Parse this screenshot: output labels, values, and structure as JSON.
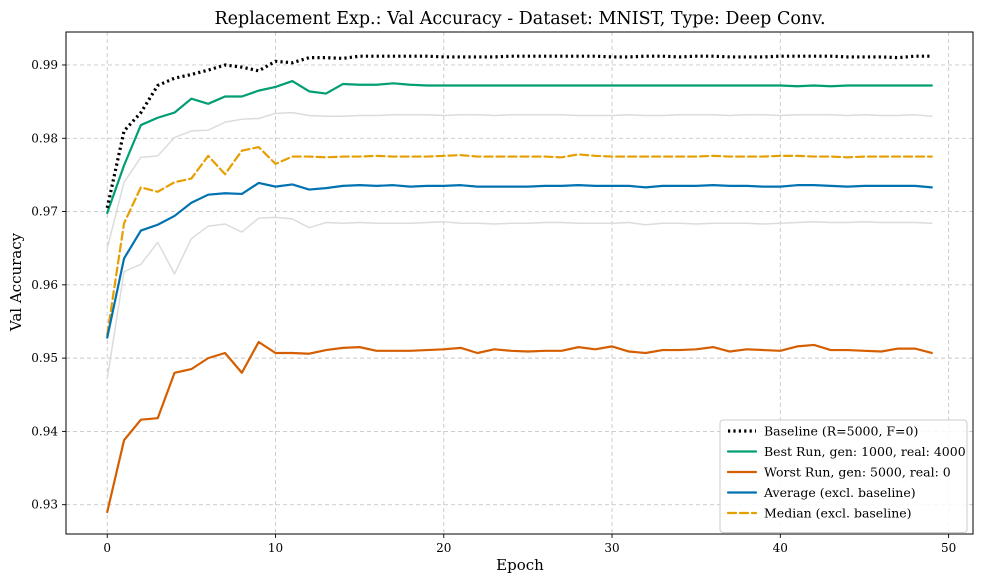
{
  "chart_data": {
    "type": "line",
    "title": "Replacement Exp.: Val Accuracy - Dataset: MNIST, Type: Deep Conv.",
    "xlabel": "Epoch",
    "ylabel": "Val Accuracy",
    "xlim": [
      -2.45,
      51.45
    ],
    "ylim": [
      0.926,
      0.9945
    ],
    "xticks": [
      0,
      10,
      20,
      30,
      40,
      50
    ],
    "yticks": [
      0.93,
      0.94,
      0.95,
      0.96,
      0.97,
      0.98,
      0.99
    ],
    "grid": true,
    "legend_position": "lower-right",
    "x": [
      0,
      1,
      2,
      3,
      4,
      5,
      6,
      7,
      8,
      9,
      10,
      11,
      12,
      13,
      14,
      15,
      16,
      17,
      18,
      19,
      20,
      21,
      22,
      23,
      24,
      25,
      26,
      27,
      28,
      29,
      30,
      31,
      32,
      33,
      34,
      35,
      36,
      37,
      38,
      39,
      40,
      41,
      42,
      43,
      44,
      45,
      46,
      47,
      48,
      49
    ],
    "series": [
      {
        "name": "Baseline (R=5000, F=0)",
        "color": "#000000",
        "style": "dotted",
        "width": 3.2,
        "legend": true,
        "values": [
          0.9705,
          0.981,
          0.9835,
          0.9872,
          0.9882,
          0.9887,
          0.9893,
          0.99,
          0.9897,
          0.9892,
          0.9905,
          0.9903,
          0.991,
          0.991,
          0.9909,
          0.9912,
          0.9912,
          0.9912,
          0.9912,
          0.9912,
          0.9911,
          0.9911,
          0.9911,
          0.9911,
          0.9912,
          0.9912,
          0.9912,
          0.9912,
          0.9912,
          0.9912,
          0.9911,
          0.9911,
          0.9912,
          0.9912,
          0.9911,
          0.9912,
          0.9912,
          0.9911,
          0.9911,
          0.9911,
          0.9912,
          0.9912,
          0.9912,
          0.9912,
          0.9911,
          0.9911,
          0.9911,
          0.991,
          0.9912,
          0.9912
        ]
      },
      {
        "name": "Best Run, gen: 1000, real: 4000",
        "color": "#009e73",
        "style": "solid",
        "width": 2.2,
        "legend": true,
        "values": [
          0.9698,
          0.9763,
          0.9818,
          0.9828,
          0.9835,
          0.9854,
          0.9847,
          0.9857,
          0.9857,
          0.9865,
          0.987,
          0.9878,
          0.9864,
          0.9861,
          0.9874,
          0.9873,
          0.9873,
          0.9875,
          0.9873,
          0.9872,
          0.9872,
          0.9872,
          0.9872,
          0.9872,
          0.9872,
          0.9872,
          0.9872,
          0.9872,
          0.9872,
          0.9872,
          0.9872,
          0.9872,
          0.9872,
          0.9872,
          0.9872,
          0.9872,
          0.9872,
          0.9872,
          0.9872,
          0.9872,
          0.9872,
          0.9871,
          0.9872,
          0.9871,
          0.9872,
          0.9872,
          0.9872,
          0.9872,
          0.9872,
          0.9872
        ]
      },
      {
        "name": "Worst Run, gen: 5000, real: 0",
        "color": "#d55e00",
        "style": "solid",
        "width": 2.2,
        "legend": true,
        "values": [
          0.929,
          0.9388,
          0.9416,
          0.9418,
          0.948,
          0.9485,
          0.95,
          0.9507,
          0.948,
          0.9522,
          0.9507,
          0.9507,
          0.9506,
          0.9511,
          0.9514,
          0.9515,
          0.951,
          0.951,
          0.951,
          0.9511,
          0.9512,
          0.9514,
          0.9507,
          0.9512,
          0.951,
          0.9509,
          0.951,
          0.951,
          0.9515,
          0.9512,
          0.9516,
          0.9509,
          0.9507,
          0.9511,
          0.9511,
          0.9512,
          0.9515,
          0.9509,
          0.9512,
          0.9511,
          0.951,
          0.9516,
          0.9518,
          0.9511,
          0.9511,
          0.951,
          0.9509,
          0.9513,
          0.9513,
          0.9507
        ]
      },
      {
        "name": "Average (excl. baseline)",
        "color": "#0072b2",
        "style": "solid",
        "width": 2.2,
        "legend": true,
        "values": [
          0.9528,
          0.9636,
          0.9674,
          0.9682,
          0.9694,
          0.9712,
          0.9723,
          0.9725,
          0.9724,
          0.9739,
          0.9734,
          0.9737,
          0.973,
          0.9732,
          0.9735,
          0.9736,
          0.9735,
          0.9736,
          0.9734,
          0.9735,
          0.9735,
          0.9736,
          0.9734,
          0.9734,
          0.9734,
          0.9734,
          0.9735,
          0.9735,
          0.9736,
          0.9735,
          0.9735,
          0.9735,
          0.9733,
          0.9735,
          0.9735,
          0.9735,
          0.9736,
          0.9735,
          0.9735,
          0.9734,
          0.9734,
          0.9736,
          0.9736,
          0.9735,
          0.9734,
          0.9735,
          0.9735,
          0.9735,
          0.9735,
          0.9733
        ]
      },
      {
        "name": "Median (excl. baseline)",
        "color": "#e69f00",
        "style": "dashed",
        "width": 2.2,
        "legend": true,
        "values": [
          0.9532,
          0.9684,
          0.9733,
          0.9727,
          0.974,
          0.9745,
          0.9776,
          0.9751,
          0.9783,
          0.9788,
          0.9765,
          0.9775,
          0.9775,
          0.9774,
          0.9775,
          0.9775,
          0.9776,
          0.9775,
          0.9775,
          0.9775,
          0.9776,
          0.9777,
          0.9775,
          0.9775,
          0.9775,
          0.9775,
          0.9775,
          0.9774,
          0.9778,
          0.9776,
          0.9775,
          0.9775,
          0.9775,
          0.9775,
          0.9775,
          0.9775,
          0.9776,
          0.9775,
          0.9775,
          0.9775,
          0.9776,
          0.9776,
          0.9775,
          0.9775,
          0.9774,
          0.9775,
          0.9775,
          0.9775,
          0.9775,
          0.9775
        ]
      },
      {
        "color": "#dcdcdc",
        "style": "solid",
        "width": 1.5,
        "legend": false,
        "values": [
          0.965,
          0.974,
          0.9774,
          0.9776,
          0.9801,
          0.981,
          0.9811,
          0.9822,
          0.9826,
          0.9827,
          0.9834,
          0.9835,
          0.9831,
          0.983,
          0.983,
          0.9831,
          0.9831,
          0.9832,
          0.9832,
          0.9832,
          0.9831,
          0.9832,
          0.9832,
          0.9831,
          0.9832,
          0.9832,
          0.9832,
          0.9832,
          0.9831,
          0.9831,
          0.9831,
          0.9832,
          0.9831,
          0.9831,
          0.9832,
          0.9832,
          0.9832,
          0.9831,
          0.9832,
          0.9832,
          0.9831,
          0.9832,
          0.9832,
          0.9832,
          0.9831,
          0.9832,
          0.9831,
          0.9831,
          0.9832,
          0.983
        ]
      },
      {
        "color": "#dcdcdc",
        "style": "solid",
        "width": 1.5,
        "legend": false,
        "values": [
          0.9472,
          0.9618,
          0.9628,
          0.9658,
          0.9615,
          0.9663,
          0.968,
          0.9683,
          0.9672,
          0.9691,
          0.9692,
          0.969,
          0.9678,
          0.9685,
          0.9684,
          0.9685,
          0.9684,
          0.9684,
          0.9684,
          0.9685,
          0.9686,
          0.9684,
          0.9684,
          0.9683,
          0.9684,
          0.9684,
          0.9685,
          0.9685,
          0.9684,
          0.9684,
          0.9684,
          0.9685,
          0.9682,
          0.9684,
          0.9684,
          0.9683,
          0.9684,
          0.9684,
          0.9684,
          0.9683,
          0.9684,
          0.9685,
          0.9686,
          0.9685,
          0.9685,
          0.9686,
          0.9685,
          0.9685,
          0.9685,
          0.9684
        ]
      }
    ]
  }
}
